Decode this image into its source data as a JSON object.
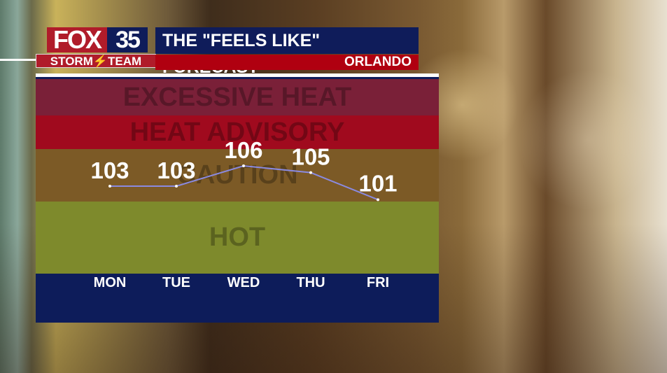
{
  "header": {
    "brand": "FOX",
    "channel": "35",
    "team": "STORM⚡TEAM",
    "title": "THE \"FEELS LIKE\" FORECAST",
    "location": "ORLANDO"
  },
  "chart_data": {
    "type": "line",
    "categories": [
      "MON",
      "TUE",
      "WED",
      "THU",
      "FRI"
    ],
    "values": [
      103,
      103,
      106,
      105,
      101
    ],
    "bands": [
      "EXCESSIVE HEAT",
      "HEAT ADVISORY",
      "CAUTION",
      "HOT"
    ],
    "colors": {
      "line": "#8a8ae0",
      "excessive_heat": "#7a2038",
      "heat_advisory": "#a00a1e",
      "caution": "#7c5a26",
      "hot": "#7e8a2c"
    }
  }
}
